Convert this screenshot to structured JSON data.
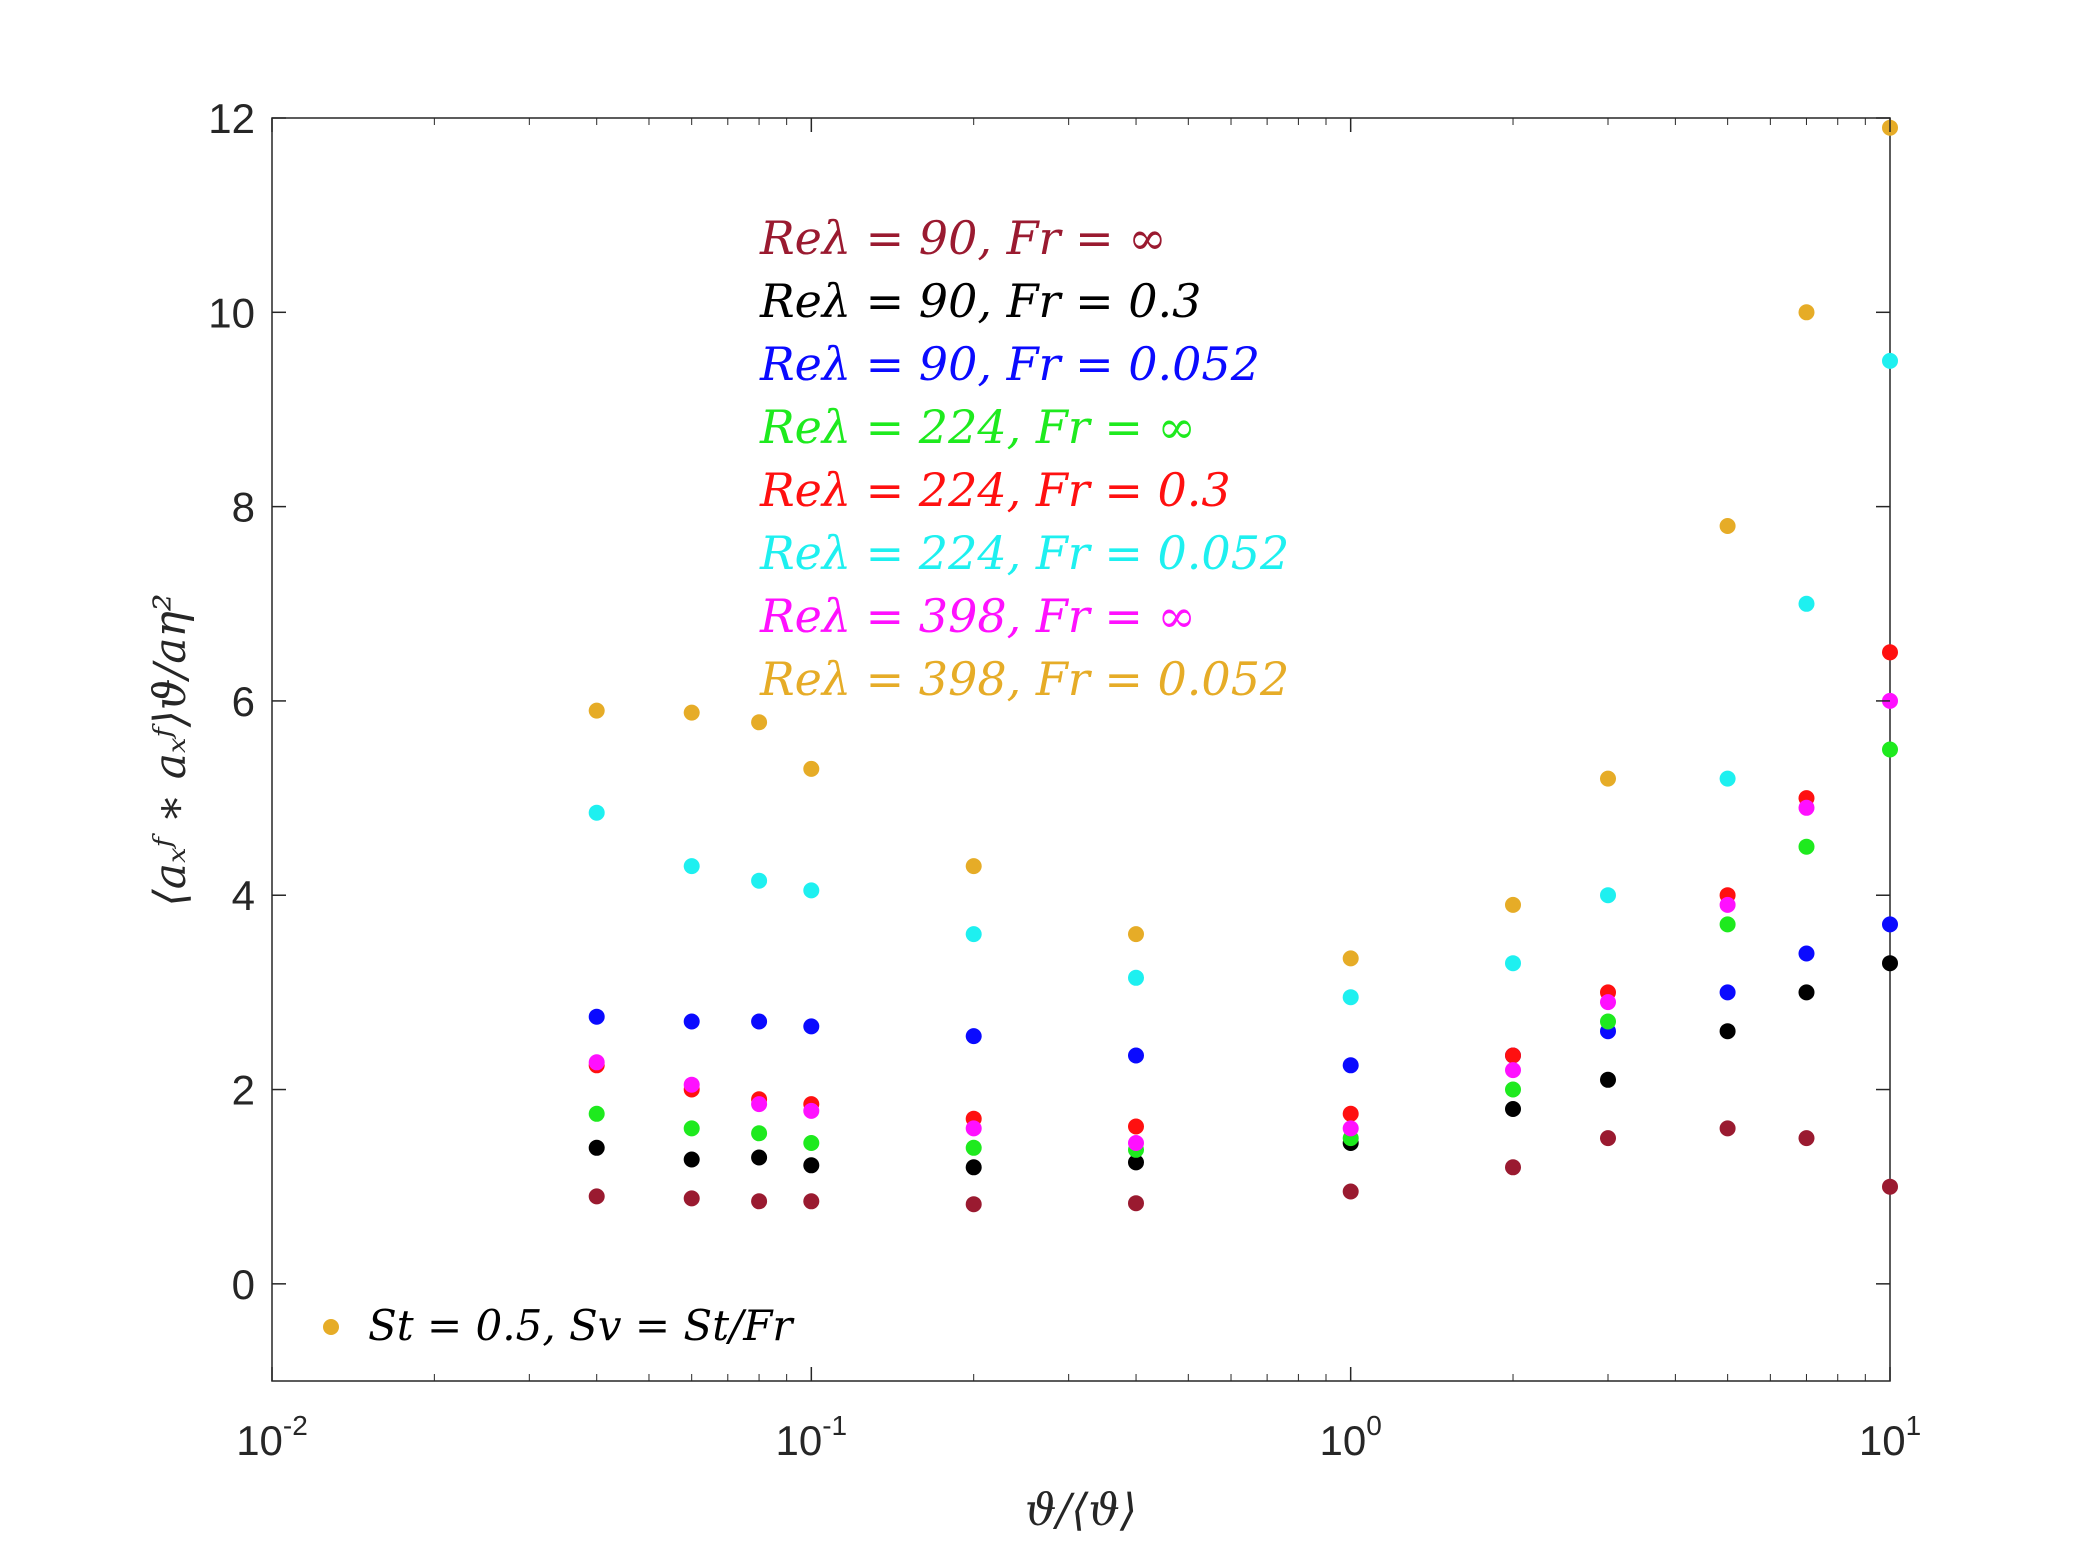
{
  "chart_data": {
    "type": "scatter",
    "x_scale": "log",
    "xlim": [
      0.01,
      10
    ],
    "ylim": [
      -1,
      12
    ],
    "x_ticks": [
      {
        "base": "10",
        "exp": "-2"
      },
      {
        "base": "10",
        "exp": "-1"
      },
      {
        "base": "10",
        "exp": "0"
      },
      {
        "base": "10",
        "exp": "1"
      }
    ],
    "x_tick_values": [
      0.01,
      0.1,
      1,
      10
    ],
    "y_ticks": [
      "0",
      "2",
      "4",
      "6",
      "8",
      "10",
      "12"
    ],
    "y_tick_values": [
      0,
      2,
      4,
      6,
      8,
      10,
      12
    ],
    "xlabel": "ϑ/⟨ϑ⟩",
    "ylabel": "⟨aₓᶠ ∗ aₓᶠ⟩ϑ/aη²",
    "grid": false,
    "legend_position": "top-center",
    "marker_note": "St = 0.5, Sv = St/Fr",
    "marker_note_color": "#e6ac27",
    "series": [
      {
        "name": "Reλ = 90, Fr = ∞",
        "color": "#9a1a30",
        "x": [
          0.04,
          0.06,
          0.08,
          0.1,
          0.2,
          0.4,
          1,
          2,
          3,
          5,
          7,
          10
        ],
        "y": [
          0.9,
          0.88,
          0.85,
          0.85,
          0.82,
          0.83,
          0.95,
          1.2,
          1.5,
          1.6,
          1.5,
          1.0
        ]
      },
      {
        "name": "Reλ = 90, Fr = 0.3",
        "color": "#000000",
        "x": [
          0.04,
          0.06,
          0.08,
          0.1,
          0.2,
          0.4,
          1,
          2,
          3,
          5,
          7,
          10
        ],
        "y": [
          1.4,
          1.28,
          1.3,
          1.22,
          1.2,
          1.25,
          1.45,
          1.8,
          2.1,
          2.6,
          3.0,
          3.3
        ]
      },
      {
        "name": "Reλ = 90, Fr = 0.052",
        "color": "#0a0aff",
        "x": [
          0.04,
          0.06,
          0.08,
          0.1,
          0.2,
          0.4,
          1,
          2,
          3,
          5,
          7,
          10
        ],
        "y": [
          2.75,
          2.7,
          2.7,
          2.65,
          2.55,
          2.35,
          2.25,
          2.35,
          2.6,
          3.0,
          3.4,
          3.7
        ]
      },
      {
        "name": "Reλ = 224, Fr = ∞",
        "color": "#1eea1e",
        "x": [
          0.04,
          0.06,
          0.08,
          0.1,
          0.2,
          0.4,
          1,
          2,
          3,
          5,
          7,
          10
        ],
        "y": [
          1.75,
          1.6,
          1.55,
          1.45,
          1.4,
          1.38,
          1.5,
          2.0,
          2.7,
          3.7,
          4.5,
          5.5
        ]
      },
      {
        "name": "Reλ = 224, Fr = 0.3",
        "color": "#ff1010",
        "x": [
          0.04,
          0.06,
          0.08,
          0.1,
          0.2,
          0.4,
          1,
          2,
          3,
          5,
          7,
          10
        ],
        "y": [
          2.25,
          2.0,
          1.9,
          1.85,
          1.7,
          1.62,
          1.75,
          2.35,
          3.0,
          4.0,
          5.0,
          6.5
        ]
      },
      {
        "name": "Reλ = 224, Fr = 0.052",
        "color": "#1ef0f0",
        "x": [
          0.04,
          0.06,
          0.08,
          0.1,
          0.2,
          0.4,
          1,
          2,
          3,
          5,
          7,
          10
        ],
        "y": [
          4.85,
          4.3,
          4.15,
          4.05,
          3.6,
          3.15,
          2.95,
          3.3,
          4.0,
          5.2,
          7.0,
          9.5
        ]
      },
      {
        "name": "Reλ = 398, Fr = ∞",
        "color": "#ff10ff",
        "x": [
          0.04,
          0.06,
          0.08,
          0.1,
          0.2,
          0.4,
          1,
          2,
          3,
          5,
          7,
          10
        ],
        "y": [
          2.28,
          2.05,
          1.85,
          1.78,
          1.6,
          1.45,
          1.6,
          2.2,
          2.9,
          3.9,
          4.9,
          6.0
        ]
      },
      {
        "name": "Reλ = 398, Fr = 0.052",
        "color": "#e6ac27",
        "x": [
          0.04,
          0.06,
          0.08,
          0.1,
          0.2,
          0.4,
          1,
          2,
          3,
          5,
          7,
          10
        ],
        "y": [
          5.9,
          5.88,
          5.78,
          5.3,
          4.3,
          3.6,
          3.35,
          3.9,
          5.2,
          7.8,
          10.0,
          11.9
        ]
      }
    ]
  }
}
